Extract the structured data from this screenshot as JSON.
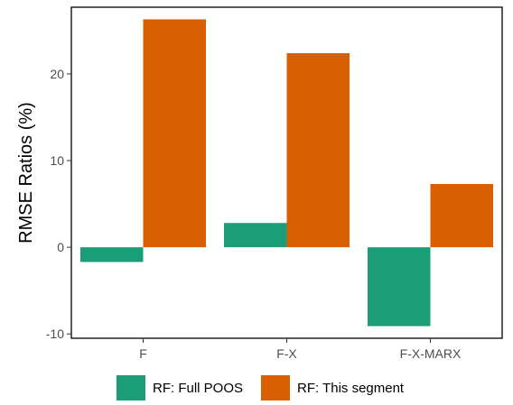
{
  "chart_data": {
    "type": "bar",
    "title": "",
    "xlabel": "",
    "ylabel": "RMSE Ratios (%)",
    "categories": [
      "F",
      "F-X",
      "F-X-MARX"
    ],
    "series": [
      {
        "name": "RF: Full POOS",
        "color": "#1b9e77",
        "values": [
          -1.7,
          2.8,
          -9.1
        ]
      },
      {
        "name": "RF: This segment",
        "color": "#d95f02",
        "values": [
          26.3,
          22.4,
          7.3
        ]
      }
    ],
    "ylim": [
      -10.5,
      27.7
    ],
    "yticks": [
      -10,
      0,
      10,
      20
    ],
    "grid": false,
    "legend_position": "bottom"
  }
}
